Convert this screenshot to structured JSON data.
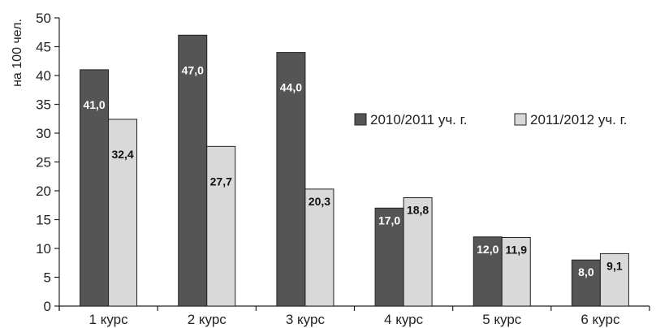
{
  "chart_data": {
    "type": "bar",
    "ylabel": "на 100 чел.",
    "ylim": [
      0,
      50
    ],
    "yticks": [
      0,
      5,
      10,
      15,
      20,
      25,
      30,
      35,
      40,
      45,
      50
    ],
    "categories": [
      "1 курс",
      "2 курс",
      "3 курс",
      "4 курс",
      "5 курс",
      "6 курс"
    ],
    "series": [
      {
        "name": "2010/2011 уч. г.",
        "color": "#555555",
        "label_color": "#ffffff",
        "values": [
          41.0,
          47.0,
          44.0,
          17.0,
          12.0,
          8.0
        ],
        "labels": [
          "41,0",
          "47,0",
          "44,0",
          "17,0",
          "12,0",
          "8,0"
        ]
      },
      {
        "name": "2011/2012 уч. г.",
        "color": "#d9d9d9",
        "label_color": "#111111",
        "values": [
          32.4,
          27.7,
          20.3,
          18.8,
          11.9,
          9.1
        ],
        "labels": [
          "32,4",
          "27,7",
          "20,3",
          "18,8",
          "11,9",
          "9,1"
        ]
      }
    ],
    "legend": "right",
    "grid": false
  }
}
